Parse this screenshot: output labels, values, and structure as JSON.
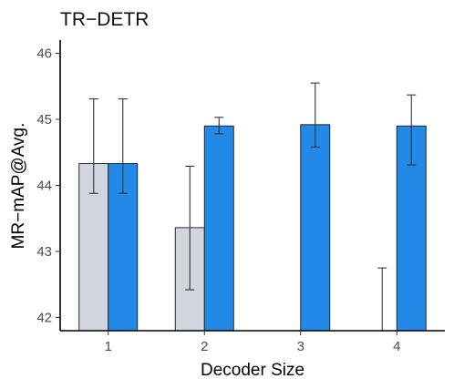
{
  "chart_data": {
    "type": "bar",
    "title": "TR−DETR",
    "xlabel": "Decoder Size",
    "ylabel": "MR−mAP@Avg.",
    "categories": [
      "1",
      "2",
      "3",
      "4"
    ],
    "ylim": [
      41.8,
      46.2
    ],
    "yticks": [
      "42",
      "43",
      "44",
      "45",
      "46"
    ],
    "grid": false,
    "legend": "none",
    "series": [
      {
        "color": "#d1d5dd",
        "values": [
          44.33,
          43.36,
          null,
          41.8
        ],
        "error_low": [
          43.88,
          42.42,
          null,
          41.8
        ],
        "error_high": [
          45.31,
          44.29,
          null,
          42.75
        ]
      },
      {
        "color": "#2389e6",
        "values": [
          44.33,
          44.9,
          44.92,
          44.9
        ],
        "error_low": [
          43.88,
          44.78,
          44.58,
          44.31
        ],
        "error_high": [
          45.31,
          45.03,
          45.55,
          45.37
        ]
      }
    ]
  }
}
